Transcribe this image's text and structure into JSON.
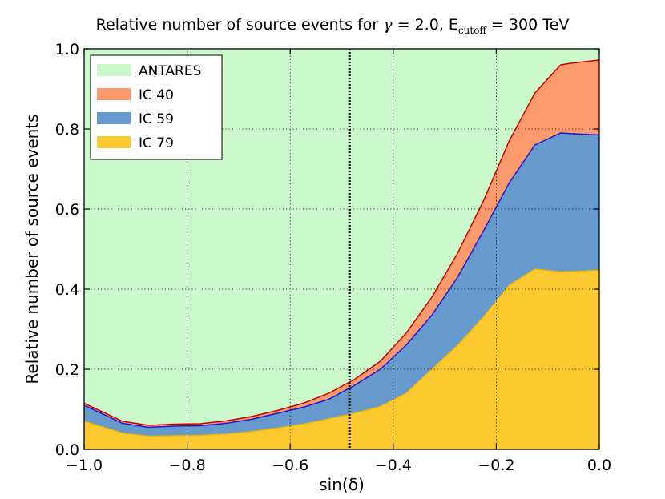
{
  "chart_data": {
    "type": "area",
    "title": {
      "prefix": "Relative number of source events for",
      "gamma_symbol": "γ",
      "gamma_eq": "= 2.0,",
      "e_label": "E",
      "e_sub": "cutoff",
      "e_eq": "= 300 TeV"
    },
    "xlabel": "sin(δ)",
    "ylabel": "Relative number of source events",
    "xlim": [
      -1.0,
      0.0
    ],
    "ylim": [
      0.0,
      1.0
    ],
    "xticks": [
      {
        "value": -1.0,
        "label": "−1.0"
      },
      {
        "value": -0.8,
        "label": "−0.8"
      },
      {
        "value": -0.6,
        "label": "−0.6"
      },
      {
        "value": -0.4,
        "label": "−0.4"
      },
      {
        "value": -0.2,
        "label": "−0.2"
      },
      {
        "value": 0.0,
        "label": "0.0"
      }
    ],
    "yticks": [
      {
        "value": 0.0,
        "label": "0.0"
      },
      {
        "value": 0.2,
        "label": "0.2"
      },
      {
        "value": 0.4,
        "label": "0.4"
      },
      {
        "value": 0.6,
        "label": "0.6"
      },
      {
        "value": 0.8,
        "label": "0.8"
      },
      {
        "value": 1.0,
        "label": "1.0"
      }
    ],
    "grid": true,
    "vline_x": -0.485,
    "legend_position": "top-left",
    "x": [
      -1.0,
      -0.925,
      -0.875,
      -0.825,
      -0.775,
      -0.725,
      -0.675,
      -0.625,
      -0.575,
      -0.525,
      -0.475,
      -0.425,
      -0.375,
      -0.325,
      -0.275,
      -0.225,
      -0.175,
      -0.125,
      -0.075,
      -0.05,
      0.0
    ],
    "series": [
      {
        "name": "ANTARES",
        "color": "#ccf9cc",
        "edge": "none",
        "top": [
          1.0,
          1.0,
          1.0,
          1.0,
          1.0,
          1.0,
          1.0,
          1.0,
          1.0,
          1.0,
          1.0,
          1.0,
          1.0,
          1.0,
          1.0,
          1.0,
          1.0,
          1.0,
          1.0,
          1.0,
          1.0
        ]
      },
      {
        "name": "IC 40",
        "color": "#fb9a6c",
        "edge": "#cc0000",
        "top": [
          0.115,
          0.07,
          0.06,
          0.063,
          0.064,
          0.071,
          0.082,
          0.097,
          0.115,
          0.14,
          0.175,
          0.22,
          0.29,
          0.38,
          0.49,
          0.62,
          0.77,
          0.89,
          0.96,
          0.965,
          0.972
        ]
      },
      {
        "name": "IC 59",
        "color": "#6699cc",
        "edge": "#1a1adb",
        "top": [
          0.11,
          0.065,
          0.055,
          0.058,
          0.059,
          0.065,
          0.075,
          0.09,
          0.105,
          0.125,
          0.16,
          0.2,
          0.26,
          0.335,
          0.43,
          0.545,
          0.665,
          0.76,
          0.79,
          0.788,
          0.785
        ]
      },
      {
        "name": "IC 79",
        "color": "#fcc931",
        "edge": "#f5b800",
        "top": [
          0.07,
          0.04,
          0.033,
          0.034,
          0.035,
          0.038,
          0.044,
          0.053,
          0.063,
          0.076,
          0.09,
          0.107,
          0.14,
          0.2,
          0.26,
          0.33,
          0.41,
          0.45,
          0.443,
          0.444,
          0.447
        ]
      }
    ]
  }
}
